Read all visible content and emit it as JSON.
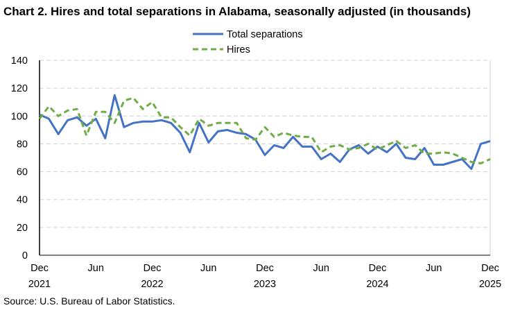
{
  "chart_data": {
    "type": "line",
    "title": "Chart 2. Hires and total separations in Alabama, seasonally adjusted (in thousands)",
    "source": "Source: U.S. Bureau of Labor Statistics.",
    "x_start": "Dec 2021",
    "x_end": "Dec 2025",
    "x_frequency": "monthly",
    "x_tick_labels": [
      {
        "month": "Dec",
        "year": "2021"
      },
      {
        "month": "Jun",
        "year": ""
      },
      {
        "month": "Dec",
        "year": "2022"
      },
      {
        "month": "Jun",
        "year": ""
      },
      {
        "month": "Dec",
        "year": "2023"
      },
      {
        "month": "Jun",
        "year": ""
      },
      {
        "month": "Dec",
        "year": "2024"
      },
      {
        "month": "Jun",
        "year": ""
      },
      {
        "month": "Dec",
        "year": "2025"
      }
    ],
    "ylim": [
      0,
      140
    ],
    "y_ticks": [
      0,
      20,
      40,
      60,
      80,
      100,
      120,
      140
    ],
    "grid": "horizontal dashed",
    "legend_position": "top-center",
    "series": [
      {
        "name": "Total separations",
        "color": "#4472C4",
        "style": "solid",
        "values": [
          101,
          98,
          87,
          97,
          99,
          93,
          98,
          84,
          115,
          92,
          95,
          96,
          96,
          97,
          95,
          88,
          74,
          95,
          81,
          89,
          90,
          88,
          87,
          83,
          72,
          79,
          77,
          85,
          78,
          78,
          69,
          73,
          67,
          76,
          79,
          73,
          78,
          74,
          80,
          70,
          69,
          77,
          65,
          65,
          67,
          69,
          62,
          80,
          82
        ]
      },
      {
        "name": "Hires",
        "color": "#70AD47",
        "style": "dashed",
        "values": [
          98,
          107,
          100,
          104,
          105,
          86,
          103,
          103,
          95,
          111,
          113,
          105,
          110,
          99,
          99,
          92,
          86,
          98,
          93,
          95,
          95,
          95,
          84,
          83,
          92,
          85,
          88,
          86,
          85,
          85,
          74,
          78,
          79,
          76,
          77,
          80,
          76,
          79,
          82,
          77,
          79,
          73,
          73,
          74,
          73,
          70,
          67,
          66,
          69
        ]
      }
    ]
  }
}
